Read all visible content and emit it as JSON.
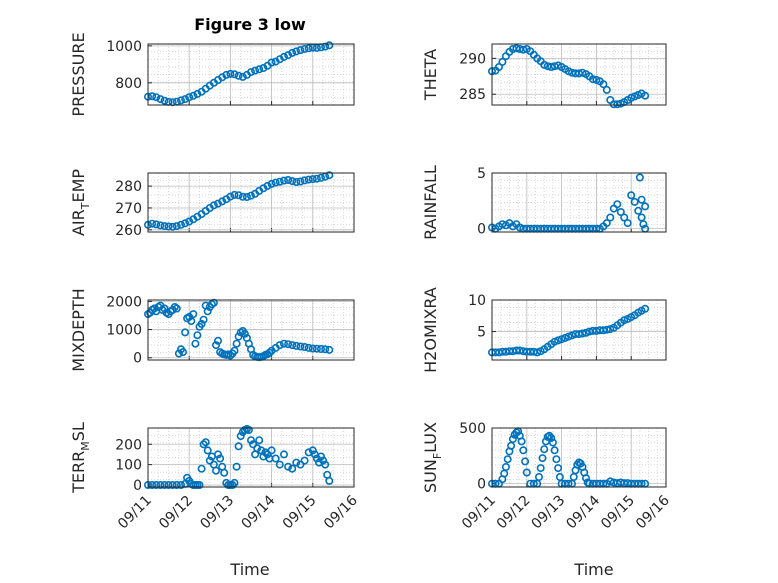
{
  "figure": {
    "title": "Figure 3 low",
    "xlabel": "Time",
    "marker_color": "#0072BD",
    "x_ticks": [
      "09/11",
      "09/12",
      "09/13",
      "09/14",
      "09/15",
      "09/16"
    ]
  },
  "chart_data": [
    {
      "type": "scatter",
      "title": "Figure 3 low",
      "ylabel": "PRESSURE",
      "ylabel_html": "PRESSURE",
      "xlim": [
        0,
        5
      ],
      "ylim": [
        680,
        1010
      ],
      "yticks": [
        800,
        1000
      ],
      "series": [
        {
          "x": [
            0,
            0.1,
            0.2,
            0.3,
            0.4,
            0.5,
            0.6,
            0.7,
            0.8,
            0.9,
            1.0,
            1.1,
            1.2,
            1.3,
            1.4,
            1.5,
            1.6,
            1.7,
            1.8,
            1.9,
            2.0,
            2.1,
            2.2,
            2.3,
            2.4,
            2.5,
            2.6,
            2.7,
            2.8,
            2.9,
            3.0,
            3.1,
            3.2,
            3.3,
            3.4,
            3.5,
            3.6,
            3.7,
            3.8,
            3.9,
            4.0,
            4.1,
            4.2,
            4.3,
            4.4
          ],
          "y": [
            725,
            727,
            722,
            712,
            703,
            697,
            695,
            698,
            705,
            712,
            722,
            730,
            740,
            752,
            768,
            785,
            800,
            815,
            830,
            843,
            848,
            846,
            838,
            832,
            843,
            858,
            866,
            873,
            880,
            892,
            910,
            915,
            928,
            940,
            950,
            962,
            970,
            977,
            983,
            987,
            990,
            989,
            992,
            996,
            1003
          ]
        }
      ]
    },
    {
      "type": "scatter",
      "ylabel": "THETA",
      "ylabel_html": "THETA",
      "xlim": [
        0,
        5
      ],
      "ylim": [
        283.5,
        292
      ],
      "yticks": [
        285,
        290
      ],
      "series": [
        {
          "x": [
            0,
            0.1,
            0.2,
            0.3,
            0.4,
            0.5,
            0.6,
            0.7,
            0.8,
            0.9,
            1.0,
            1.1,
            1.2,
            1.3,
            1.4,
            1.5,
            1.6,
            1.7,
            1.8,
            1.9,
            2.0,
            2.1,
            2.2,
            2.3,
            2.4,
            2.5,
            2.6,
            2.7,
            2.8,
            2.9,
            3.0,
            3.1,
            3.2,
            3.3,
            3.4,
            3.5,
            3.6,
            3.7,
            3.8,
            3.9,
            4.0,
            4.1,
            4.2,
            4.3,
            4.4
          ],
          "y": [
            288.2,
            288.3,
            288.8,
            289.5,
            290.3,
            290.9,
            291.3,
            291.4,
            291.3,
            291.2,
            291.3,
            291.0,
            290.5,
            290.0,
            289.6,
            289.1,
            288.9,
            288.8,
            288.9,
            289.0,
            288.8,
            288.5,
            288.2,
            288.0,
            287.9,
            287.9,
            288.0,
            287.8,
            287.5,
            287.1,
            287.0,
            286.8,
            286.4,
            285.6,
            284.2,
            283.6,
            283.6,
            283.7,
            283.9,
            284.2,
            284.5,
            284.7,
            284.9,
            285.1,
            284.8
          ]
        }
      ]
    },
    {
      "type": "scatter",
      "ylabel": "AIR_TEMP",
      "ylabel_html": "AIR<tspan font-size='11' dy='5'>T</tspan><tspan dy='-5'>EMP</tspan>",
      "xlim": [
        0,
        5
      ],
      "ylim": [
        259,
        286
      ],
      "yticks": [
        260,
        270,
        280
      ],
      "series": [
        {
          "x": [
            0,
            0.1,
            0.2,
            0.3,
            0.4,
            0.5,
            0.6,
            0.7,
            0.8,
            0.9,
            1.0,
            1.1,
            1.2,
            1.3,
            1.4,
            1.5,
            1.6,
            1.7,
            1.8,
            1.9,
            2.0,
            2.1,
            2.2,
            2.3,
            2.4,
            2.5,
            2.6,
            2.7,
            2.8,
            2.9,
            3.0,
            3.1,
            3.2,
            3.3,
            3.4,
            3.5,
            3.6,
            3.7,
            3.8,
            3.9,
            4.0,
            4.1,
            4.2,
            4.3,
            4.4
          ],
          "y": [
            262.3,
            262.8,
            262.5,
            262.0,
            261.7,
            261.5,
            261.4,
            261.7,
            262.3,
            263.0,
            263.8,
            264.8,
            266.0,
            267.2,
            268.6,
            270.0,
            271.2,
            272.0,
            273.0,
            274.0,
            275.2,
            276.0,
            275.8,
            275.1,
            275.0,
            275.6,
            276.5,
            277.8,
            279.0,
            280.1,
            281.0,
            281.6,
            282.0,
            282.5,
            282.8,
            282.3,
            281.9,
            282.1,
            282.6,
            283.0,
            283.2,
            283.4,
            283.8,
            284.3,
            285.0
          ]
        }
      ]
    },
    {
      "type": "scatter",
      "ylabel": "RAINFALL",
      "ylabel_html": "RAINFALL",
      "xlim": [
        0,
        5
      ],
      "ylim": [
        -0.3,
        5
      ],
      "yticks": [
        0,
        5
      ],
      "series": [
        {
          "x": [
            0,
            0.1,
            0.2,
            0.3,
            0.4,
            0.5,
            0.6,
            0.7,
            0.8,
            0.9,
            1.0,
            1.1,
            1.2,
            1.3,
            1.4,
            1.5,
            1.6,
            1.7,
            1.8,
            1.9,
            2.0,
            2.1,
            2.2,
            2.3,
            2.4,
            2.5,
            2.6,
            2.7,
            2.8,
            2.9,
            3.0,
            3.1,
            3.2,
            3.3,
            3.4,
            3.5,
            3.6,
            3.7,
            3.8,
            3.9,
            4.0,
            4.1,
            4.2,
            4.3,
            4.4
          ],
          "y": [
            0.1,
            0.0,
            0.2,
            0.4,
            0.3,
            0.5,
            0.2,
            0.4,
            0.1,
            0.0,
            0.0,
            0.0,
            0.0,
            0.0,
            0.0,
            0.0,
            0.0,
            0.0,
            0.0,
            0.0,
            0.0,
            0.0,
            0.0,
            0.0,
            0.0,
            0.0,
            0.0,
            0.0,
            0.0,
            0.0,
            0.0,
            0.0,
            0.2,
            0.5,
            1.0,
            1.8,
            2.2,
            1.5,
            1.0,
            0.5,
            3.0,
            2.4,
            1.6,
            1.0,
            2.0
          ]
        },
        {
          "x": [
            4.25,
            4.3,
            4.35,
            4.4
          ],
          "y": [
            4.6,
            2.6,
            0.4,
            0.0
          ]
        }
      ]
    },
    {
      "type": "scatter",
      "ylabel": "MIXDEPTH",
      "ylabel_html": "MIXDEPTH",
      "xlim": [
        0,
        5
      ],
      "ylim": [
        -80,
        2050
      ],
      "yticks": [
        0,
        1000,
        2000
      ],
      "series": [
        {
          "x": [
            0,
            0.05,
            0.1,
            0.15,
            0.2,
            0.25,
            0.3,
            0.35,
            0.4,
            0.45,
            0.5,
            0.55,
            0.6,
            0.65,
            0.7,
            0.75,
            0.8,
            0.85,
            0.9,
            0.95,
            1.0,
            1.05,
            1.1,
            1.15,
            1.2,
            1.25,
            1.3,
            1.35,
            1.4,
            1.45,
            1.5,
            1.55,
            1.6,
            1.65,
            1.7,
            1.75,
            1.8,
            1.85,
            1.9,
            1.95,
            2.0,
            2.05,
            2.1,
            2.15,
            2.2,
            2.25,
            2.3,
            2.35,
            2.4,
            2.45,
            2.5,
            2.55,
            2.6,
            2.65,
            2.7,
            2.75,
            2.8,
            2.85,
            2.9,
            2.95,
            3.0,
            3.1,
            3.2,
            3.3,
            3.4,
            3.5,
            3.6,
            3.7,
            3.8,
            3.9,
            4.0,
            4.1,
            4.2,
            4.3,
            4.4
          ],
          "y": [
            1550,
            1600,
            1700,
            1750,
            1650,
            1800,
            1850,
            1700,
            1750,
            1600,
            1550,
            1650,
            1700,
            1800,
            1750,
            150,
            300,
            200,
            900,
            1400,
            1450,
            1300,
            1550,
            500,
            800,
            1100,
            1200,
            1350,
            1850,
            1650,
            1800,
            1900,
            1950,
            450,
            600,
            200,
            150,
            120,
            100,
            120,
            80,
            150,
            250,
            500,
            750,
            900,
            950,
            850,
            700,
            500,
            300,
            100,
            50,
            30,
            20,
            30,
            60,
            100,
            130,
            180,
            250,
            350,
            450,
            500,
            480,
            450,
            420,
            400,
            380,
            350,
            330,
            320,
            310,
            300,
            280
          ]
        }
      ]
    },
    {
      "type": "scatter",
      "ylabel": "H2OMIXRA",
      "ylabel_html": "H2OMIXRA",
      "xlim": [
        0,
        5
      ],
      "ylim": [
        0.5,
        10
      ],
      "yticks": [
        5,
        10
      ],
      "series": [
        {
          "x": [
            0,
            0.1,
            0.2,
            0.3,
            0.4,
            0.5,
            0.6,
            0.7,
            0.8,
            0.9,
            1.0,
            1.1,
            1.2,
            1.3,
            1.4,
            1.5,
            1.6,
            1.7,
            1.8,
            1.9,
            2.0,
            2.1,
            2.2,
            2.3,
            2.4,
            2.5,
            2.6,
            2.7,
            2.8,
            2.9,
            3.0,
            3.1,
            3.2,
            3.3,
            3.4,
            3.5,
            3.6,
            3.7,
            3.8,
            3.9,
            4.0,
            4.1,
            4.2,
            4.3,
            4.4
          ],
          "y": [
            1.7,
            1.7,
            1.7,
            1.8,
            1.8,
            1.9,
            1.9,
            2.0,
            2.0,
            1.9,
            1.8,
            1.8,
            1.8,
            1.7,
            1.9,
            2.2,
            2.6,
            3.0,
            3.4,
            3.6,
            3.8,
            4.0,
            4.2,
            4.4,
            4.6,
            4.6,
            4.7,
            4.8,
            5.0,
            5.1,
            5.1,
            5.2,
            5.2,
            5.3,
            5.4,
            5.6,
            6.0,
            6.4,
            6.8,
            7.0,
            7.3,
            7.6,
            8.0,
            8.3,
            8.6
          ]
        }
      ]
    },
    {
      "type": "scatter",
      "ylabel": "TERR_MSL",
      "ylabel_html": "TERR<tspan font-size='11' dy='5'>M</tspan><tspan dy='-5'>SL</tspan>",
      "xlim": [
        0,
        5
      ],
      "ylim": [
        -10,
        280
      ],
      "yticks": [
        0,
        100,
        200
      ],
      "series": [
        {
          "x": [
            0,
            0.1,
            0.2,
            0.3,
            0.4,
            0.5,
            0.6,
            0.7,
            0.8,
            0.9,
            0.95,
            1.0,
            1.05,
            1.1,
            1.15,
            1.2,
            1.25,
            1.3,
            1.35,
            1.4,
            1.45,
            1.5,
            1.55,
            1.6,
            1.65,
            1.7,
            1.75,
            1.8,
            1.85,
            1.9,
            1.95,
            2.0,
            2.05,
            2.1,
            2.15,
            2.2,
            2.25,
            2.3,
            2.35,
            2.4,
            2.45,
            2.5,
            2.55,
            2.6,
            2.65,
            2.7,
            2.75,
            2.8,
            2.85,
            2.9,
            2.95,
            3.0,
            3.1,
            3.2,
            3.3,
            3.4,
            3.5,
            3.6,
            3.7,
            3.8,
            3.9,
            4.0,
            4.05,
            4.1,
            4.15,
            4.2,
            4.25,
            4.3,
            4.35,
            4.4
          ],
          "y": [
            0,
            0,
            0,
            0,
            0,
            0,
            0,
            0,
            0,
            5,
            35,
            20,
            5,
            0,
            0,
            0,
            0,
            80,
            200,
            210,
            170,
            120,
            140,
            100,
            70,
            150,
            130,
            90,
            60,
            10,
            0,
            0,
            0,
            10,
            90,
            190,
            240,
            260,
            270,
            275,
            270,
            220,
            200,
            150,
            180,
            220,
            170,
            140,
            160,
            150,
            130,
            170,
            130,
            100,
            150,
            90,
            80,
            110,
            100,
            120,
            160,
            170,
            150,
            130,
            110,
            140,
            120,
            100,
            50,
            20
          ]
        }
      ]
    },
    {
      "type": "scatter",
      "ylabel": "SUN_FLUX",
      "ylabel_html": "SUN<tspan font-size='11' dy='5'>F</tspan><tspan dy='-5'>LUX</tspan>",
      "xlim": [
        0,
        5
      ],
      "ylim": [
        -30,
        500
      ],
      "yticks": [
        0,
        500
      ],
      "series": [
        {
          "x": [
            0,
            0.1,
            0.2,
            0.3,
            0.35,
            0.4,
            0.45,
            0.5,
            0.55,
            0.6,
            0.65,
            0.7,
            0.75,
            0.8,
            0.85,
            0.9,
            0.95,
            1.0,
            1.1,
            1.2,
            1.3,
            1.35,
            1.4,
            1.45,
            1.5,
            1.55,
            1.6,
            1.65,
            1.7,
            1.75,
            1.8,
            1.85,
            1.9,
            1.95,
            2.0,
            2.1,
            2.2,
            2.3,
            2.35,
            2.4,
            2.45,
            2.5,
            2.55,
            2.6,
            2.65,
            2.7,
            2.75,
            2.8,
            2.9,
            3.0,
            3.1,
            3.2,
            3.3,
            3.4,
            3.5,
            3.6,
            3.7,
            3.8,
            3.9,
            4.0,
            4.1,
            4.2,
            4.3,
            4.4
          ],
          "y": [
            0,
            0,
            0,
            40,
            90,
            150,
            220,
            290,
            340,
            400,
            440,
            460,
            470,
            430,
            380,
            300,
            200,
            100,
            0,
            0,
            0,
            60,
            140,
            230,
            310,
            380,
            420,
            430,
            410,
            370,
            300,
            220,
            140,
            60,
            0,
            0,
            0,
            0,
            60,
            120,
            170,
            190,
            180,
            150,
            100,
            50,
            10,
            0,
            0,
            0,
            0,
            0,
            0,
            20,
            10,
            5,
            10,
            5,
            5,
            0,
            0,
            0,
            0,
            0
          ]
        }
      ]
    }
  ]
}
